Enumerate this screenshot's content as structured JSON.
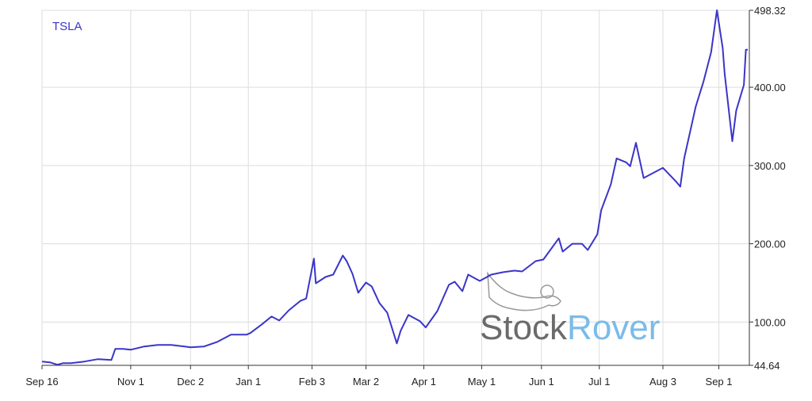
{
  "chart_data": {
    "type": "line",
    "x": [
      "Sep 16",
      "Sep 20",
      "Sep 24",
      "Sep 27",
      "Oct 1",
      "Oct 8",
      "Oct 15",
      "Oct 22",
      "Oct 24",
      "Oct 28",
      "Nov 1",
      "Nov 8",
      "Nov 15",
      "Nov 22",
      "Nov 29",
      "Dec 2",
      "Dec 9",
      "Dec 16",
      "Dec 23",
      "Dec 31",
      "Jan 2",
      "Jan 8",
      "Jan 13",
      "Jan 17",
      "Jan 22",
      "Jan 28",
      "Jan 31",
      "Feb 4",
      "Feb 5",
      "Feb 10",
      "Feb 14",
      "Feb 19",
      "Feb 21",
      "Feb 24",
      "Feb 27",
      "Mar 2",
      "Mar 5",
      "Mar 9",
      "Mar 13",
      "Mar 18",
      "Mar 20",
      "Mar 24",
      "Mar 30",
      "Apr 2",
      "Apr 8",
      "Apr 14",
      "Apr 17",
      "Apr 21",
      "Apr 24",
      "Apr 30",
      "May 6",
      "May 12",
      "May 18",
      "May 22",
      "May 29",
      "Jun 2",
      "Jun 5",
      "Jun 10",
      "Jun 12",
      "Jun 17",
      "Jun 22",
      "Jun 25",
      "Jun 30",
      "Jul 2",
      "Jul 7",
      "Jul 10",
      "Jul 15",
      "Jul 17",
      "Jul 20",
      "Jul 24",
      "Aug 3",
      "Aug 10",
      "Aug 12",
      "Aug 14",
      "Aug 20",
      "Aug 24",
      "Aug 28",
      "Aug 31",
      "Sep 3",
      "Sep 4",
      "Sep 8",
      "Sep 10",
      "Sep 14",
      "Sep 15",
      "Sep 16"
    ],
    "series": [
      {
        "name": "TSLA",
        "color": "#3a35c8",
        "values": [
          49.5,
          48.5,
          45.5,
          47.5,
          47.5,
          49.5,
          52.5,
          51.5,
          65.7,
          65.7,
          64.6,
          68.7,
          70.7,
          70.7,
          68.7,
          67.7,
          68.7,
          74.7,
          83.8,
          83.8,
          85.9,
          97,
          107,
          102,
          115,
          127,
          130,
          181,
          149.5,
          157.6,
          160.6,
          185,
          177.8,
          161.6,
          137.4,
          150.5,
          145.5,
          124.2,
          112,
          72.7,
          88.9,
          109,
          101,
          93,
          114,
          147.5,
          151.5,
          139.4,
          160.6,
          152.5,
          160.6,
          163.6,
          165.7,
          164.6,
          177.8,
          179.8,
          190,
          207,
          190,
          200,
          200,
          192,
          212,
          243,
          275.8,
          309,
          304,
          299,
          329,
          284,
          297,
          279,
          273,
          309,
          375,
          407,
          445,
          498.32,
          450,
          418,
          331,
          370,
          403,
          448,
          448
        ]
      }
    ],
    "ylim": [
      44.64,
      498.32
    ],
    "yticks": [
      44.64,
      {
        "value": 100,
        "label": "100.00"
      },
      {
        "value": 200,
        "label": "200.00"
      },
      {
        "value": 300,
        "label": "300.00"
      },
      {
        "value": 400,
        "label": "400.00"
      },
      498.32
    ],
    "xticks": [
      "Sep 16",
      "Nov 1",
      "Dec 2",
      "Jan 1",
      "Feb 3",
      "Mar 2",
      "Apr 1",
      "May 1",
      "Jun 1",
      "Jul 1",
      "Aug 3",
      "Sep 1"
    ],
    "grid": true,
    "watermark": {
      "part1": "Stock",
      "part2": "Rover"
    }
  }
}
